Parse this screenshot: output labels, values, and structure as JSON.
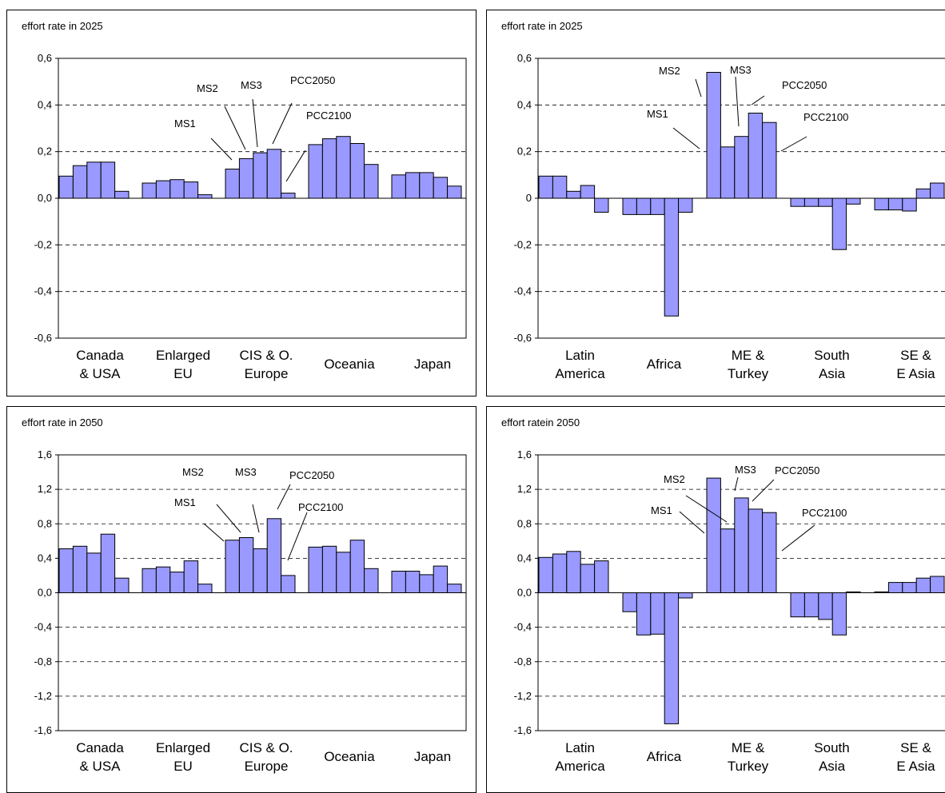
{
  "chart_data": [
    {
      "type": "bar",
      "title": "effort rate in 2025",
      "ylim": [
        -0.6,
        0.6
      ],
      "yticks": [
        "0,6",
        "0,4",
        "0,2",
        "0,0",
        "-0,2",
        "-0,4",
        "-0,6"
      ],
      "yticks_values": [
        0.6,
        0.4,
        0.2,
        0.0,
        -0.2,
        -0.4,
        -0.6
      ],
      "grid": "dashed horizontal",
      "bar_color": "#9999ff",
      "categories": [
        {
          "line1": "Canada",
          "line2": "& USA"
        },
        {
          "line1": "Enlarged",
          "line2": "EU"
        },
        {
          "line1": "CIS & O.",
          "line2": "Europe"
        },
        {
          "line1": "Oceania",
          "line2": ""
        },
        {
          "line1": "Japan",
          "line2": ""
        }
      ],
      "series_names": [
        "MS1",
        "MS2",
        "MS3",
        "PCC2050",
        "PCC2100"
      ],
      "values": [
        [
          0.095,
          0.14,
          0.155,
          0.155,
          0.03
        ],
        [
          0.065,
          0.075,
          0.08,
          0.07,
          0.015
        ],
        [
          0.125,
          0.17,
          0.195,
          0.21,
          0.022
        ],
        [
          0.23,
          0.255,
          0.265,
          0.235,
          0.145
        ],
        [
          0.1,
          0.11,
          0.11,
          0.09,
          0.052
        ]
      ],
      "annotation_group": 2,
      "annotations": [
        {
          "label": "MS1"
        },
        {
          "label": "MS2"
        },
        {
          "label": "MS3"
        },
        {
          "label": "PCC2050"
        },
        {
          "label": "PCC2100"
        }
      ]
    },
    {
      "type": "bar",
      "title": "effort rate in 2025",
      "ylim": [
        -0.6,
        0.6
      ],
      "yticks": [
        "0,6",
        "0,4",
        "0,2",
        "0",
        "-0,2",
        "-0,4",
        "-0,6"
      ],
      "yticks_values": [
        0.6,
        0.4,
        0.2,
        0.0,
        -0.2,
        -0.4,
        -0.6
      ],
      "grid": "dashed horizontal",
      "bar_color": "#9999ff",
      "categories": [
        {
          "line1": "Latin",
          "line2": "America"
        },
        {
          "line1": "Africa",
          "line2": ""
        },
        {
          "line1": "ME &",
          "line2": "Turkey"
        },
        {
          "line1": "South",
          "line2": "Asia"
        },
        {
          "line1": "SE &",
          "line2": "E Asia"
        }
      ],
      "series_names": [
        "MS1",
        "MS2",
        "MS3",
        "PCC2050",
        "PCC2100"
      ],
      "values": [
        [
          0.095,
          0.095,
          0.03,
          0.055,
          -0.06
        ],
        [
          -0.07,
          -0.07,
          -0.07,
          -0.505,
          -0.06
        ],
        [
          0.54,
          0.22,
          0.265,
          0.365,
          0.325
        ],
        [
          -0.035,
          -0.035,
          -0.035,
          -0.22,
          -0.025
        ],
        [
          -0.05,
          -0.05,
          -0.055,
          0.04,
          0.065
        ]
      ],
      "annotation_group": 2,
      "annotations": [
        {
          "label": "MS1"
        },
        {
          "label": "MS2"
        },
        {
          "label": "MS3"
        },
        {
          "label": "PCC2050"
        },
        {
          "label": "PCC2100"
        }
      ]
    },
    {
      "type": "bar",
      "title": "effort rate in 2050",
      "ylim": [
        -1.6,
        1.6
      ],
      "yticks": [
        "1,6",
        "1,2",
        "0,8",
        "0,4",
        "0,0",
        "-0,4",
        "-0,8",
        "-1,2",
        "-1,6"
      ],
      "yticks_values": [
        1.6,
        1.2,
        0.8,
        0.4,
        0.0,
        -0.4,
        -0.8,
        -1.2,
        -1.6
      ],
      "grid": "dashed horizontal",
      "bar_color": "#9999ff",
      "categories": [
        {
          "line1": "Canada",
          "line2": "& USA"
        },
        {
          "line1": "Enlarged",
          "line2": "EU"
        },
        {
          "line1": "CIS & O.",
          "line2": "Europe"
        },
        {
          "line1": "Oceania",
          "line2": ""
        },
        {
          "line1": "Japan",
          "line2": ""
        }
      ],
      "series_names": [
        "MS1",
        "MS2",
        "MS3",
        "PCC2050",
        "PCC2100"
      ],
      "values": [
        [
          0.51,
          0.54,
          0.46,
          0.68,
          0.17
        ],
        [
          0.28,
          0.3,
          0.24,
          0.37,
          0.1
        ],
        [
          0.61,
          0.64,
          0.51,
          0.86,
          0.2
        ],
        [
          0.53,
          0.54,
          0.47,
          0.61,
          0.28
        ],
        [
          0.25,
          0.25,
          0.21,
          0.31,
          0.1
        ]
      ],
      "annotation_group": 2,
      "annotations": [
        {
          "label": "MS1"
        },
        {
          "label": "MS2"
        },
        {
          "label": "MS3"
        },
        {
          "label": "PCC2050"
        },
        {
          "label": "PCC2100"
        }
      ]
    },
    {
      "type": "bar",
      "title": "effort ratein 2050",
      "ylim": [
        -1.6,
        1.6
      ],
      "yticks": [
        "1,6",
        "1,2",
        "0,8",
        "0,4",
        "0,0",
        "-0,4",
        "-0,8",
        "-1,2",
        "-1,6"
      ],
      "yticks_values": [
        1.6,
        1.2,
        0.8,
        0.4,
        0.0,
        -0.4,
        -0.8,
        -1.2,
        -1.6
      ],
      "grid": "dashed horizontal",
      "bar_color": "#9999ff",
      "categories": [
        {
          "line1": "Latin",
          "line2": "America"
        },
        {
          "line1": "Africa",
          "line2": ""
        },
        {
          "line1": "ME &",
          "line2": "Turkey"
        },
        {
          "line1": "South",
          "line2": "Asia"
        },
        {
          "line1": "SE &",
          "line2": "E Asia"
        }
      ],
      "series_names": [
        "MS1",
        "MS2",
        "MS3",
        "PCC2050",
        "PCC2100"
      ],
      "values": [
        [
          0.41,
          0.45,
          0.48,
          0.33,
          0.37
        ],
        [
          -0.22,
          -0.49,
          -0.48,
          -1.52,
          -0.06
        ],
        [
          1.33,
          0.74,
          1.1,
          0.97,
          0.93
        ],
        [
          -0.28,
          -0.28,
          -0.31,
          -0.49,
          0.01
        ],
        [
          0.01,
          0.12,
          0.12,
          0.17,
          0.19
        ]
      ],
      "annotation_group": 2,
      "annotations": [
        {
          "label": "MS1"
        },
        {
          "label": "MS2"
        },
        {
          "label": "MS3"
        },
        {
          "label": "PCC2050"
        },
        {
          "label": "PCC2100"
        }
      ]
    }
  ]
}
